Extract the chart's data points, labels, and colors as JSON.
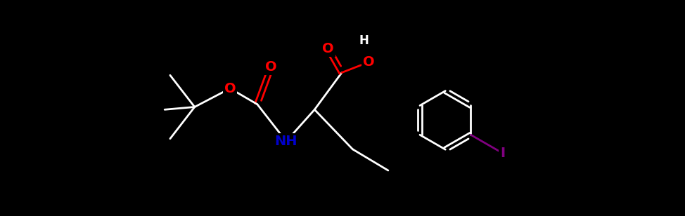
{
  "bg_color": "#000000",
  "bond_color": "#ffffff",
  "O_color": "#ff0000",
  "N_color": "#0000cc",
  "I_color": "#800080",
  "bond_width": 2.0,
  "fig_width": 9.74,
  "fig_height": 3.08,
  "dpi": 100,
  "xlim": [
    -1.5,
    11.5
  ],
  "ylim": [
    -1.8,
    2.2
  ]
}
